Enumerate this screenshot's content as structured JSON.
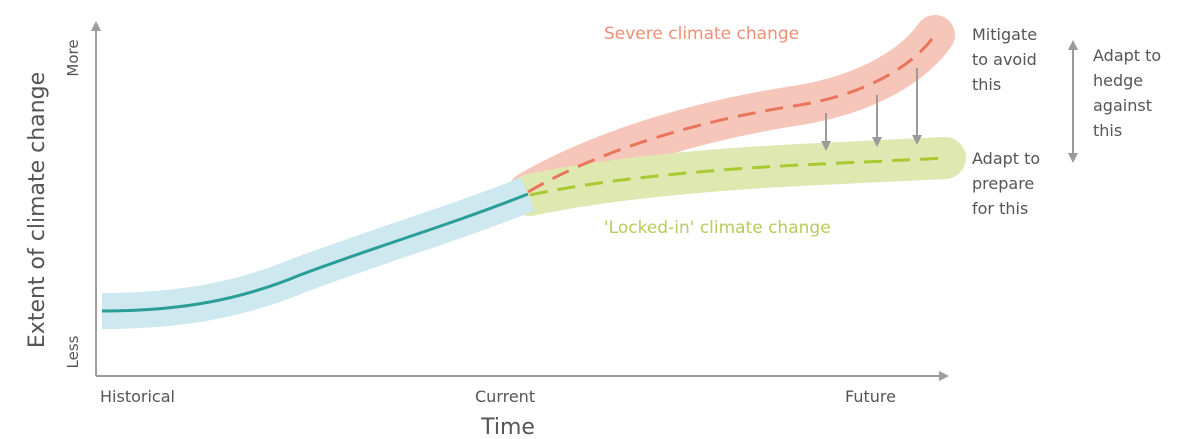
{
  "axes": {
    "y_label": "Extent of climate change",
    "y_top": "More",
    "y_bottom": "Less",
    "x_label": "Time",
    "x_ticks": [
      "Historical",
      "Current",
      "Future"
    ]
  },
  "scenarios": {
    "severe": "Severe climate change",
    "locked_in": "'Locked-in' climate change"
  },
  "notes": {
    "mitigate": [
      "Mitigate",
      "to avoid",
      "this"
    ],
    "adapt_hedge": [
      "Adapt to",
      "hedge",
      "against",
      "this"
    ],
    "adapt_prepare": [
      "Adapt to",
      "prepare",
      "for this"
    ]
  },
  "colors": {
    "historical_band": "#cde8ef",
    "historical_line": "#2a9d96",
    "severe_band": "#f7c6ba",
    "severe_line": "#e9755c",
    "locked_band": "#dfe8b0",
    "locked_line": "#a9c930",
    "axis": "#9c9c9c",
    "arrow": "#9a9a9a"
  }
}
